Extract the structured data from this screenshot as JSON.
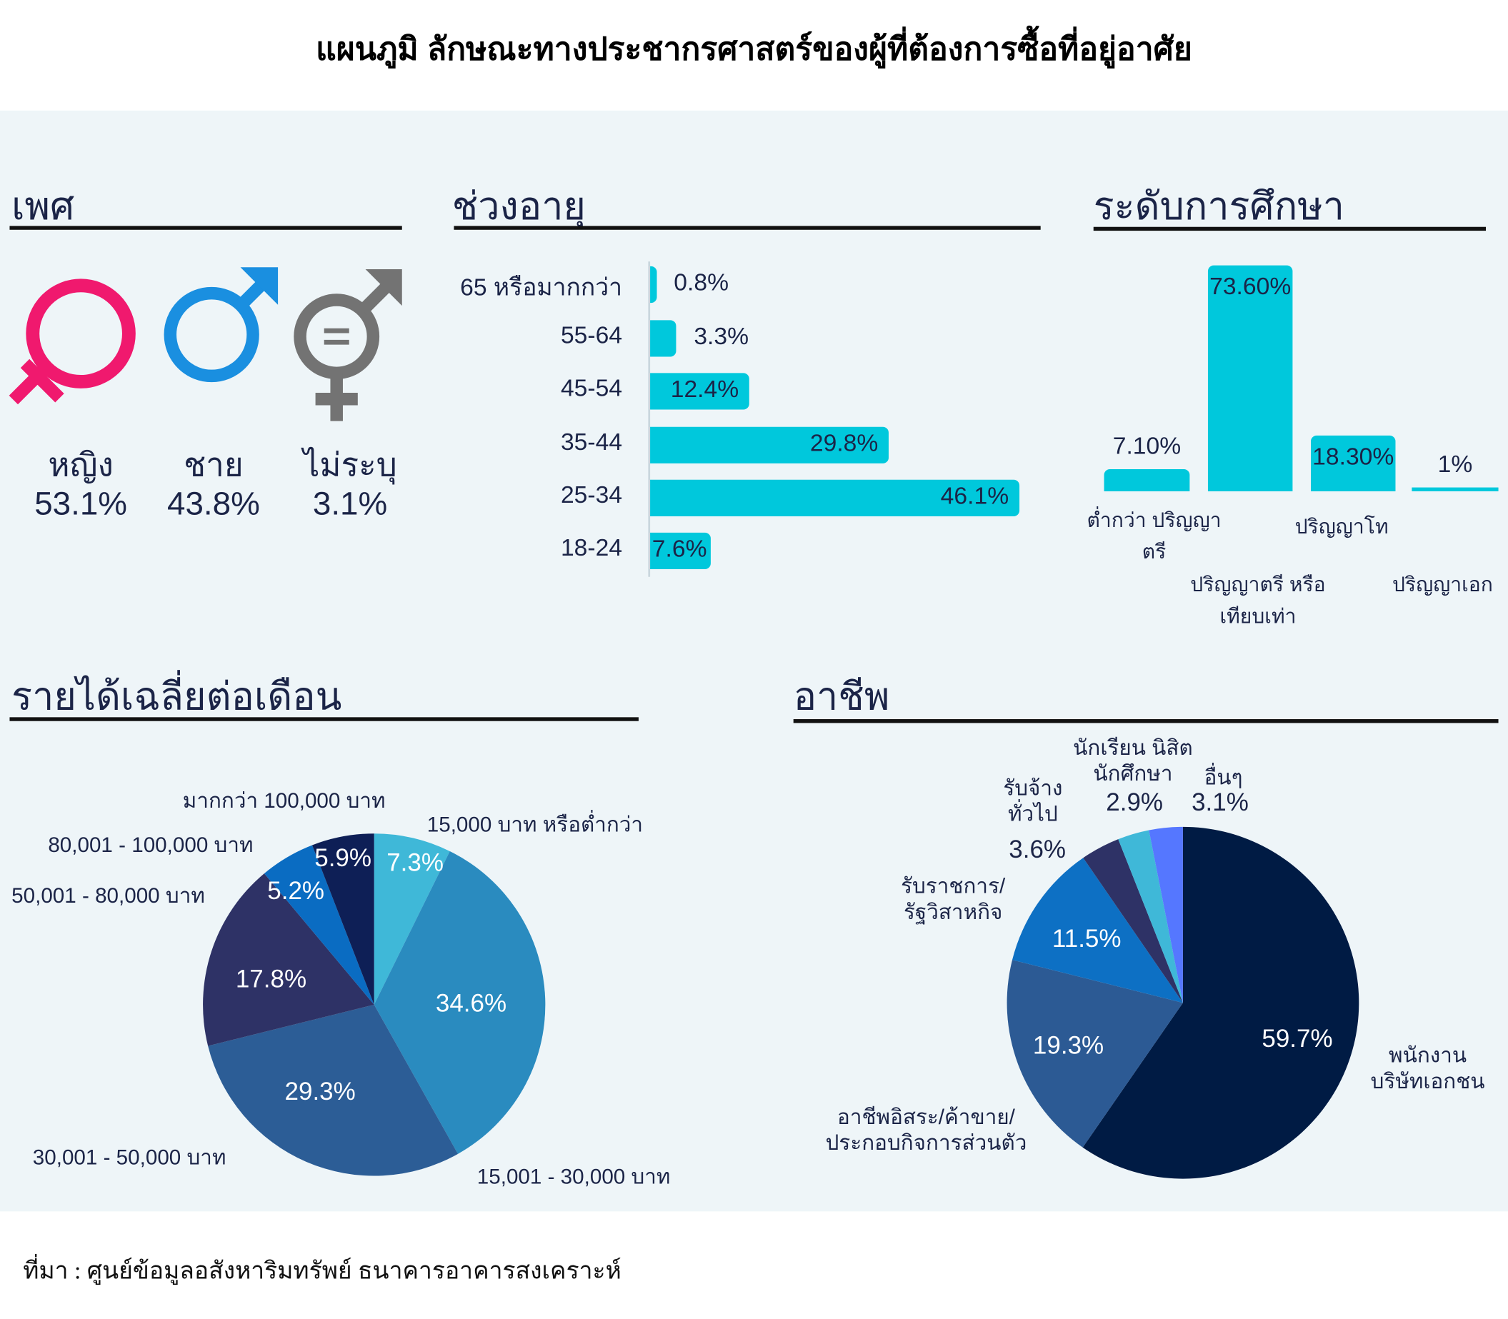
{
  "title": "แผนภูมิ ลักษณะทางประชากรศาสตร์ของผู้ที่ต้องการซื้อที่อยู่อาศัย",
  "colors": {
    "background_panel": "#eef5f8",
    "bar": "#00c8dc",
    "heading": "#1b2447",
    "female": "#f0196e",
    "male": "#1a8fe0",
    "unspecified": "#737373"
  },
  "gender": {
    "heading": "เพศ",
    "items": [
      {
        "label": "หญิง",
        "value": "53.1%",
        "icon": "female-symbol-icon"
      },
      {
        "label": "ชาย",
        "value": "43.8%",
        "icon": "male-symbol-icon"
      },
      {
        "label": "ไม่ระบุ",
        "value": "3.1%",
        "icon": "unspecified-gender-symbol-icon"
      }
    ]
  },
  "chart_data": [
    {
      "type": "bar",
      "orientation": "horizontal",
      "title": "ช่วงอายุ",
      "categories": [
        "65 หรือมากกว่า",
        "55-64",
        "45-54",
        "35-44",
        "25-34",
        "18-24"
      ],
      "values": [
        0.8,
        3.3,
        12.4,
        29.8,
        46.1,
        7.6
      ],
      "labels": [
        "0.8%",
        "3.3%",
        "12.4%",
        "29.8%",
        "46.1%",
        "7.6%"
      ]
    },
    {
      "type": "bar",
      "orientation": "vertical",
      "title": "ระดับการศึกษา",
      "categories": [
        "ต่ำกว่า ปริญญาตรี",
        "ปริญญาตรี หรือเทียบเท่า",
        "ปริญญาโท",
        "ปริญญาเอก"
      ],
      "values": [
        7.1,
        73.6,
        18.3,
        1
      ],
      "labels": [
        "7.10%",
        "73.60%",
        "18.30%",
        "1%"
      ]
    },
    {
      "type": "pie",
      "title": "รายได้เฉลี่ยต่อเดือน",
      "categories": [
        "15,000 บาท หรือต่ำกว่า",
        "15,001 - 30,000 บาท",
        "30,001 - 50,000 บาท",
        "50,001 - 80,000 บาท",
        "80,001 - 100,000 บาท",
        "มากกว่า 100,000 บาท"
      ],
      "values": [
        7.3,
        34.6,
        29.3,
        17.8,
        5.2,
        5.9
      ],
      "labels": [
        "7.3%",
        "34.6%",
        "29.3%",
        "17.8%",
        "5.2%",
        "5.9%"
      ],
      "colors": [
        "#3fb8d8",
        "#2a8bbf",
        "#2c5d96",
        "#2e3266",
        "#0a6cc2",
        "#0e1f56"
      ]
    },
    {
      "type": "pie",
      "title": "อาชีพ",
      "categories": [
        "พนักงาน บริษัทเอกชน",
        "อาชีพอิสระ/ค้าขาย/ ประกอบกิจการส่วนตัว",
        "รับราชการ/ รัฐวิสาหกิจ",
        "รับจ้าง ทั่วไป",
        "นักเรียน นิสิต นักศึกษา",
        "อื่นๆ"
      ],
      "values": [
        59.7,
        19.3,
        11.5,
        3.6,
        2.9,
        3.1
      ],
      "labels": [
        "59.7%",
        "19.3%",
        "11.5%",
        "3.6%",
        "2.9%",
        "3.1%"
      ],
      "colors": [
        "#001b44",
        "#2c5a94",
        "#0d70c4",
        "#2e3266",
        "#3fb8d8",
        "#5577ff"
      ]
    }
  ],
  "footer": "ที่มา : ศูนย์ข้อมูลอสังหาริมทรัพย์ ธนาคารอาคารสงเคราะห์"
}
